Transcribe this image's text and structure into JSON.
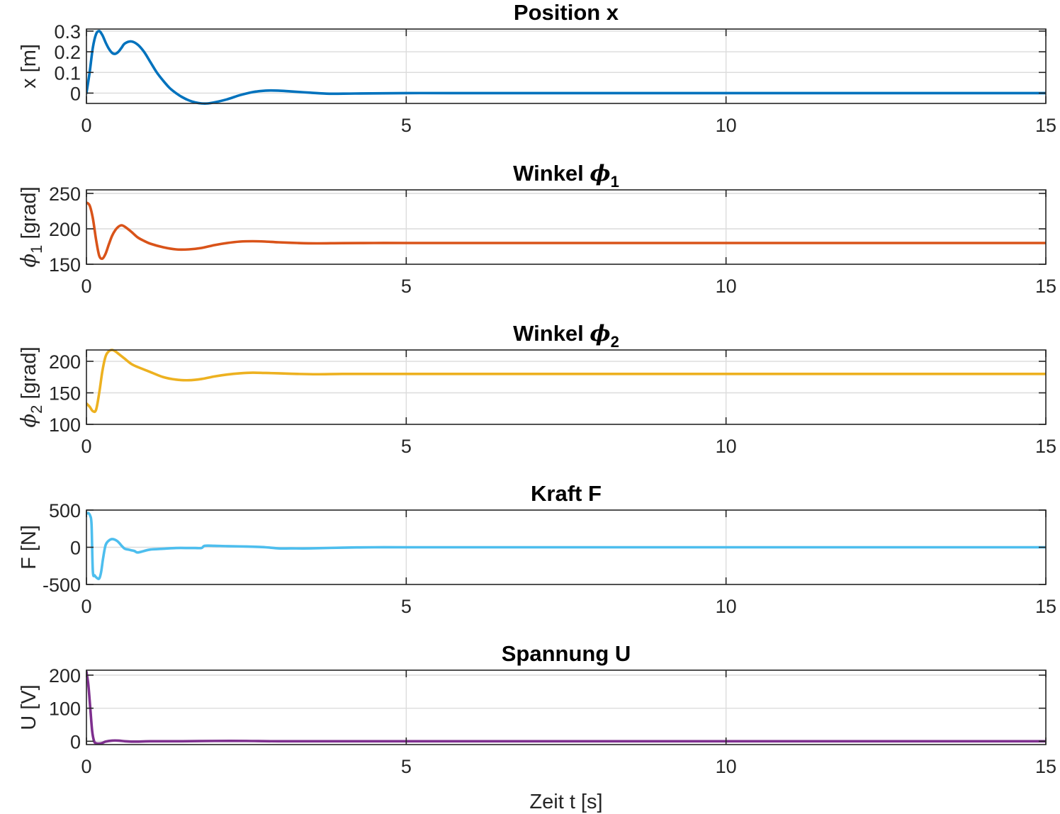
{
  "chart_data": [
    {
      "type": "line",
      "title": "Position x",
      "title_symbol": "",
      "title_subscript": "",
      "ylabel": "x [m]",
      "ylabel_symbol": "",
      "ylabel_subscript": "",
      "xlabel": "",
      "xlim": [
        0,
        15
      ],
      "ylim": [
        -0.05,
        0.31
      ],
      "xticks": [
        0,
        5,
        10,
        15
      ],
      "yticks": [
        0,
        0.1,
        0.2,
        0.3
      ],
      "ytick_labels": [
        "0",
        "0.1",
        "0.2",
        "0.3"
      ],
      "grid": true,
      "color": "#0072BD",
      "series": [
        {
          "x": [
            0,
            0.05,
            0.1,
            0.15,
            0.2,
            0.25,
            0.3,
            0.35,
            0.4,
            0.45,
            0.5,
            0.55,
            0.6,
            0.7,
            0.8,
            0.9,
            1.0,
            1.1,
            1.2,
            1.3,
            1.4,
            1.5,
            1.6,
            1.7,
            1.8,
            1.9,
            2.0,
            2.2,
            2.4,
            2.6,
            2.8,
            3.0,
            3.2,
            3.5,
            3.8,
            4.2,
            5,
            6,
            8,
            10,
            12,
            15
          ],
          "y": [
            0,
            0.1,
            0.22,
            0.285,
            0.3,
            0.28,
            0.245,
            0.215,
            0.195,
            0.19,
            0.2,
            0.22,
            0.24,
            0.25,
            0.235,
            0.2,
            0.15,
            0.1,
            0.06,
            0.025,
            0.0,
            -0.02,
            -0.035,
            -0.045,
            -0.05,
            -0.05,
            -0.045,
            -0.03,
            -0.01,
            0.005,
            0.012,
            0.012,
            0.008,
            0.002,
            -0.003,
            -0.002,
            0,
            0,
            0,
            0,
            0,
            0
          ]
        }
      ]
    },
    {
      "type": "line",
      "title": "Winkel ",
      "title_symbol": "ϕ",
      "title_subscript": "1",
      "ylabel": " [grad]",
      "ylabel_symbol": "ϕ",
      "ylabel_subscript": "1",
      "xlabel": "",
      "xlim": [
        0,
        15
      ],
      "ylim": [
        150,
        255
      ],
      "xticks": [
        0,
        5,
        10,
        15
      ],
      "yticks": [
        150,
        200,
        250
      ],
      "ytick_labels": [
        "150",
        "200",
        "250"
      ],
      "grid": true,
      "color": "#D95319",
      "series": [
        {
          "x": [
            0,
            0.05,
            0.1,
            0.15,
            0.2,
            0.25,
            0.3,
            0.35,
            0.4,
            0.45,
            0.5,
            0.55,
            0.6,
            0.7,
            0.8,
            0.9,
            1.0,
            1.2,
            1.4,
            1.6,
            1.8,
            2.0,
            2.2,
            2.4,
            2.6,
            2.8,
            3.0,
            3.3,
            3.6,
            4.0,
            4.5,
            5,
            6,
            8,
            10,
            12,
            15
          ],
          "y": [
            237,
            233,
            215,
            185,
            162,
            158,
            165,
            178,
            190,
            198,
            203,
            205,
            203,
            196,
            188,
            183,
            179,
            174,
            171,
            171,
            173,
            177,
            180,
            182,
            182.5,
            182,
            181,
            180,
            179.5,
            179.8,
            180,
            180,
            180,
            180,
            180,
            180,
            180
          ]
        }
      ]
    },
    {
      "type": "line",
      "title": "Winkel ",
      "title_symbol": "ϕ",
      "title_subscript": "2",
      "ylabel": " [grad]",
      "ylabel_symbol": "ϕ",
      "ylabel_subscript": "2",
      "xlabel": "",
      "xlim": [
        0,
        15
      ],
      "ylim": [
        100,
        218
      ],
      "xticks": [
        0,
        5,
        10,
        15
      ],
      "yticks": [
        100,
        150,
        200
      ],
      "ytick_labels": [
        "100",
        "150",
        "200"
      ],
      "grid": true,
      "color": "#EDB120",
      "series": [
        {
          "x": [
            0,
            0.05,
            0.1,
            0.15,
            0.2,
            0.25,
            0.3,
            0.35,
            0.4,
            0.45,
            0.5,
            0.6,
            0.7,
            0.8,
            1.0,
            1.2,
            1.4,
            1.6,
            1.8,
            2.0,
            2.2,
            2.4,
            2.6,
            2.8,
            3.0,
            3.3,
            3.6,
            4.0,
            4.5,
            5,
            6,
            8,
            10,
            12,
            15
          ],
          "y": [
            133,
            128,
            121,
            123,
            150,
            185,
            208,
            216,
            218,
            216,
            212,
            204,
            196,
            191,
            183,
            175,
            171,
            170,
            172,
            176,
            179,
            181,
            182,
            181.5,
            181,
            180,
            179.5,
            180,
            180,
            180,
            180,
            180,
            180,
            180,
            180
          ]
        }
      ]
    },
    {
      "type": "line",
      "title": "Kraft F",
      "title_symbol": "",
      "title_subscript": "",
      "ylabel": "F [N]",
      "ylabel_symbol": "",
      "ylabel_subscript": "",
      "xlabel": "",
      "xlim": [
        0,
        15
      ],
      "ylim": [
        -500,
        500
      ],
      "xticks": [
        0,
        5,
        10,
        15
      ],
      "yticks": [
        -500,
        0,
        500
      ],
      "ytick_labels": [
        "-500",
        "0",
        "500"
      ],
      "grid": true,
      "color": "#4DBEEE",
      "series": [
        {
          "x": [
            0,
            0.03,
            0.06,
            0.08,
            0.1,
            0.13,
            0.16,
            0.2,
            0.23,
            0.26,
            0.3,
            0.35,
            0.4,
            0.45,
            0.5,
            0.55,
            0.6,
            0.65,
            0.7,
            0.75,
            0.8,
            0.9,
            1.0,
            1.2,
            1.4,
            1.6,
            1.7,
            1.8,
            1.85,
            2.0,
            2.2,
            2.5,
            2.8,
            3.0,
            3.2,
            3.5,
            4.0,
            4.5,
            5,
            6,
            8,
            10,
            12,
            15
          ],
          "y": [
            450,
            460,
            420,
            300,
            -320,
            -380,
            -410,
            -420,
            -330,
            -150,
            30,
            90,
            110,
            100,
            70,
            20,
            -20,
            -30,
            -40,
            -50,
            -70,
            -50,
            -30,
            -20,
            -10,
            -10,
            -10,
            -10,
            20,
            20,
            15,
            10,
            0,
            -15,
            -15,
            -15,
            -5,
            0,
            0,
            0,
            0,
            0,
            0,
            0
          ]
        }
      ]
    },
    {
      "type": "line",
      "title": "Spannung U",
      "title_symbol": "",
      "title_subscript": "",
      "ylabel": "U [V]",
      "ylabel_symbol": "",
      "ylabel_subscript": "",
      "xlabel": "Zeit t [s]",
      "xlim": [
        0,
        15
      ],
      "ylim": [
        -10,
        215
      ],
      "xticks": [
        0,
        5,
        10,
        15
      ],
      "yticks": [
        0,
        100,
        200
      ],
      "ytick_labels": [
        "0",
        "100",
        "200"
      ],
      "grid": true,
      "color": "#7E2F8E",
      "series": [
        {
          "x": [
            0,
            0.03,
            0.06,
            0.09,
            0.12,
            0.15,
            0.2,
            0.25,
            0.3,
            0.4,
            0.5,
            0.6,
            0.7,
            0.8,
            1.0,
            1.5,
            2.0,
            2.5,
            3.0,
            4.0,
            5,
            6,
            8,
            10,
            12,
            15
          ],
          "y": [
            210,
            170,
            100,
            30,
            0,
            -6,
            -7,
            -5,
            -1,
            2,
            2,
            0,
            -1,
            -1,
            0,
            0,
            1,
            1,
            0,
            0,
            0,
            0,
            0,
            0,
            0,
            0
          ]
        }
      ]
    }
  ]
}
